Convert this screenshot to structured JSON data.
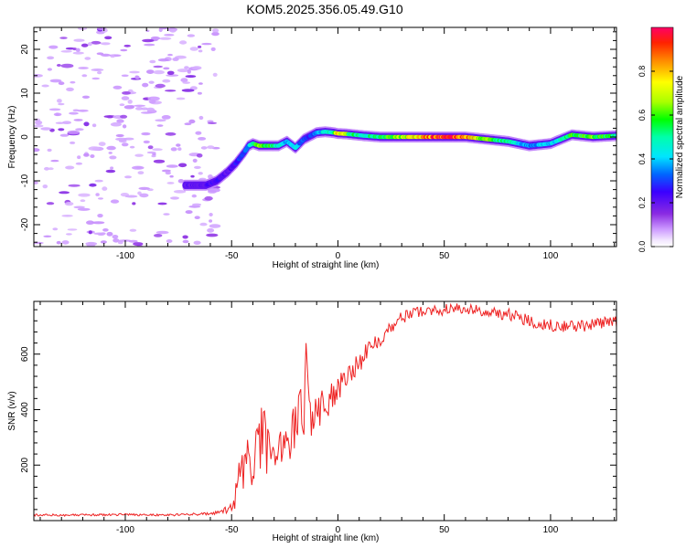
{
  "figure_title": "KOM5.2025.356.05.49.G10",
  "chart_data": [
    {
      "type": "heatmap",
      "title": "KOM5.2025.356.05.49.G10",
      "xlabel": "Height of straight line (km)",
      "ylabel": "Frequency (Hz)",
      "xlim": [
        -143,
        131
      ],
      "ylim": [
        -25,
        25
      ],
      "x_ticks": [
        -100,
        -50,
        0,
        50,
        100
      ],
      "y_ticks": [
        -20,
        -10,
        0,
        10,
        20
      ],
      "x_tick_labels": [
        "-100",
        "-50",
        "0",
        "50",
        "100"
      ],
      "y_tick_labels": [
        "-20",
        "-10",
        "0",
        "10",
        "20"
      ],
      "colorbar": {
        "label": "Normalized spectral amplitude",
        "range": [
          0,
          1
        ],
        "ticks": [
          0.0,
          0.2,
          0.4,
          0.6,
          0.8
        ],
        "tick_labels": [
          "0.0",
          "0.2",
          "0.4",
          "0.6",
          "0.8"
        ]
      },
      "noise_region_x": [
        -143,
        -57
      ],
      "signal_trace": {
        "x": [
          -72,
          -62,
          -57,
          -52,
          -48,
          -44,
          -42,
          -40,
          -37,
          -32,
          -28,
          -24,
          -20,
          -16,
          -14,
          -10,
          -6,
          -2,
          0,
          4,
          8,
          12,
          20,
          30,
          40,
          50,
          60,
          70,
          80,
          90,
          100,
          110,
          120,
          131
        ],
        "freq": [
          -11,
          -11,
          -10,
          -8,
          -6,
          -3.5,
          -2,
          -1.5,
          -2,
          -2,
          -2,
          -1,
          -2.5,
          -0.5,
          0,
          1,
          1.2,
          1,
          0.8,
          0.7,
          0.5,
          0.3,
          0,
          0,
          0,
          0,
          0,
          -0.5,
          -1,
          -2,
          -1.5,
          0.5,
          0,
          0.3
        ],
        "amplitude": [
          0.2,
          0.22,
          0.25,
          0.2,
          0.25,
          0.3,
          0.35,
          0.55,
          0.65,
          0.55,
          0.45,
          0.35,
          0.4,
          0.3,
          0.25,
          0.35,
          0.45,
          0.5,
          0.85,
          0.6,
          0.5,
          0.45,
          0.55,
          0.65,
          0.8,
          0.95,
          0.85,
          0.6,
          0.5,
          0.35,
          0.4,
          0.55,
          0.6,
          0.5
        ]
      }
    },
    {
      "type": "line",
      "title": "",
      "xlabel": "Height of straight line (km)",
      "ylabel": "SNR (v/v)",
      "xlim": [
        -143,
        131
      ],
      "ylim": [
        0,
        790
      ],
      "x_ticks": [
        -100,
        -50,
        0,
        50,
        100
      ],
      "y_ticks": [
        200,
        400,
        600
      ],
      "x_tick_labels": [
        "-100",
        "-50",
        "0",
        "50",
        "100"
      ],
      "y_tick_labels": [
        "200",
        "400",
        "600"
      ],
      "series": [
        {
          "name": "SNR",
          "color": "#ee2222",
          "x": [
            -143,
            -120,
            -100,
            -80,
            -60,
            -55,
            -50,
            -47,
            -45,
            -40,
            -36,
            -33,
            -30,
            -28,
            -25,
            -22,
            -20,
            -18,
            -16,
            -15,
            -13,
            -10,
            -5,
            0,
            5,
            10,
            15,
            20,
            25,
            30,
            35,
            40,
            50,
            60,
            70,
            80,
            90,
            100,
            110,
            120,
            131
          ],
          "y": [
            20,
            20,
            22,
            20,
            25,
            30,
            45,
            120,
            220,
            200,
            300,
            230,
            310,
            280,
            300,
            290,
            350,
            400,
            380,
            640,
            370,
            400,
            420,
            480,
            540,
            570,
            620,
            660,
            700,
            730,
            750,
            755,
            760,
            765,
            750,
            745,
            720,
            705,
            700,
            705,
            720
          ],
          "noise_amplitude": [
            4,
            4,
            4,
            4,
            5,
            8,
            20,
            60,
            110,
            120,
            140,
            120,
            130,
            110,
            100,
            90,
            90,
            90,
            90,
            0,
            80,
            70,
            60,
            50,
            45,
            40,
            35,
            30,
            25,
            22,
            20,
            20,
            20,
            20,
            22,
            22,
            22,
            22,
            22,
            22,
            22
          ]
        }
      ]
    }
  ]
}
